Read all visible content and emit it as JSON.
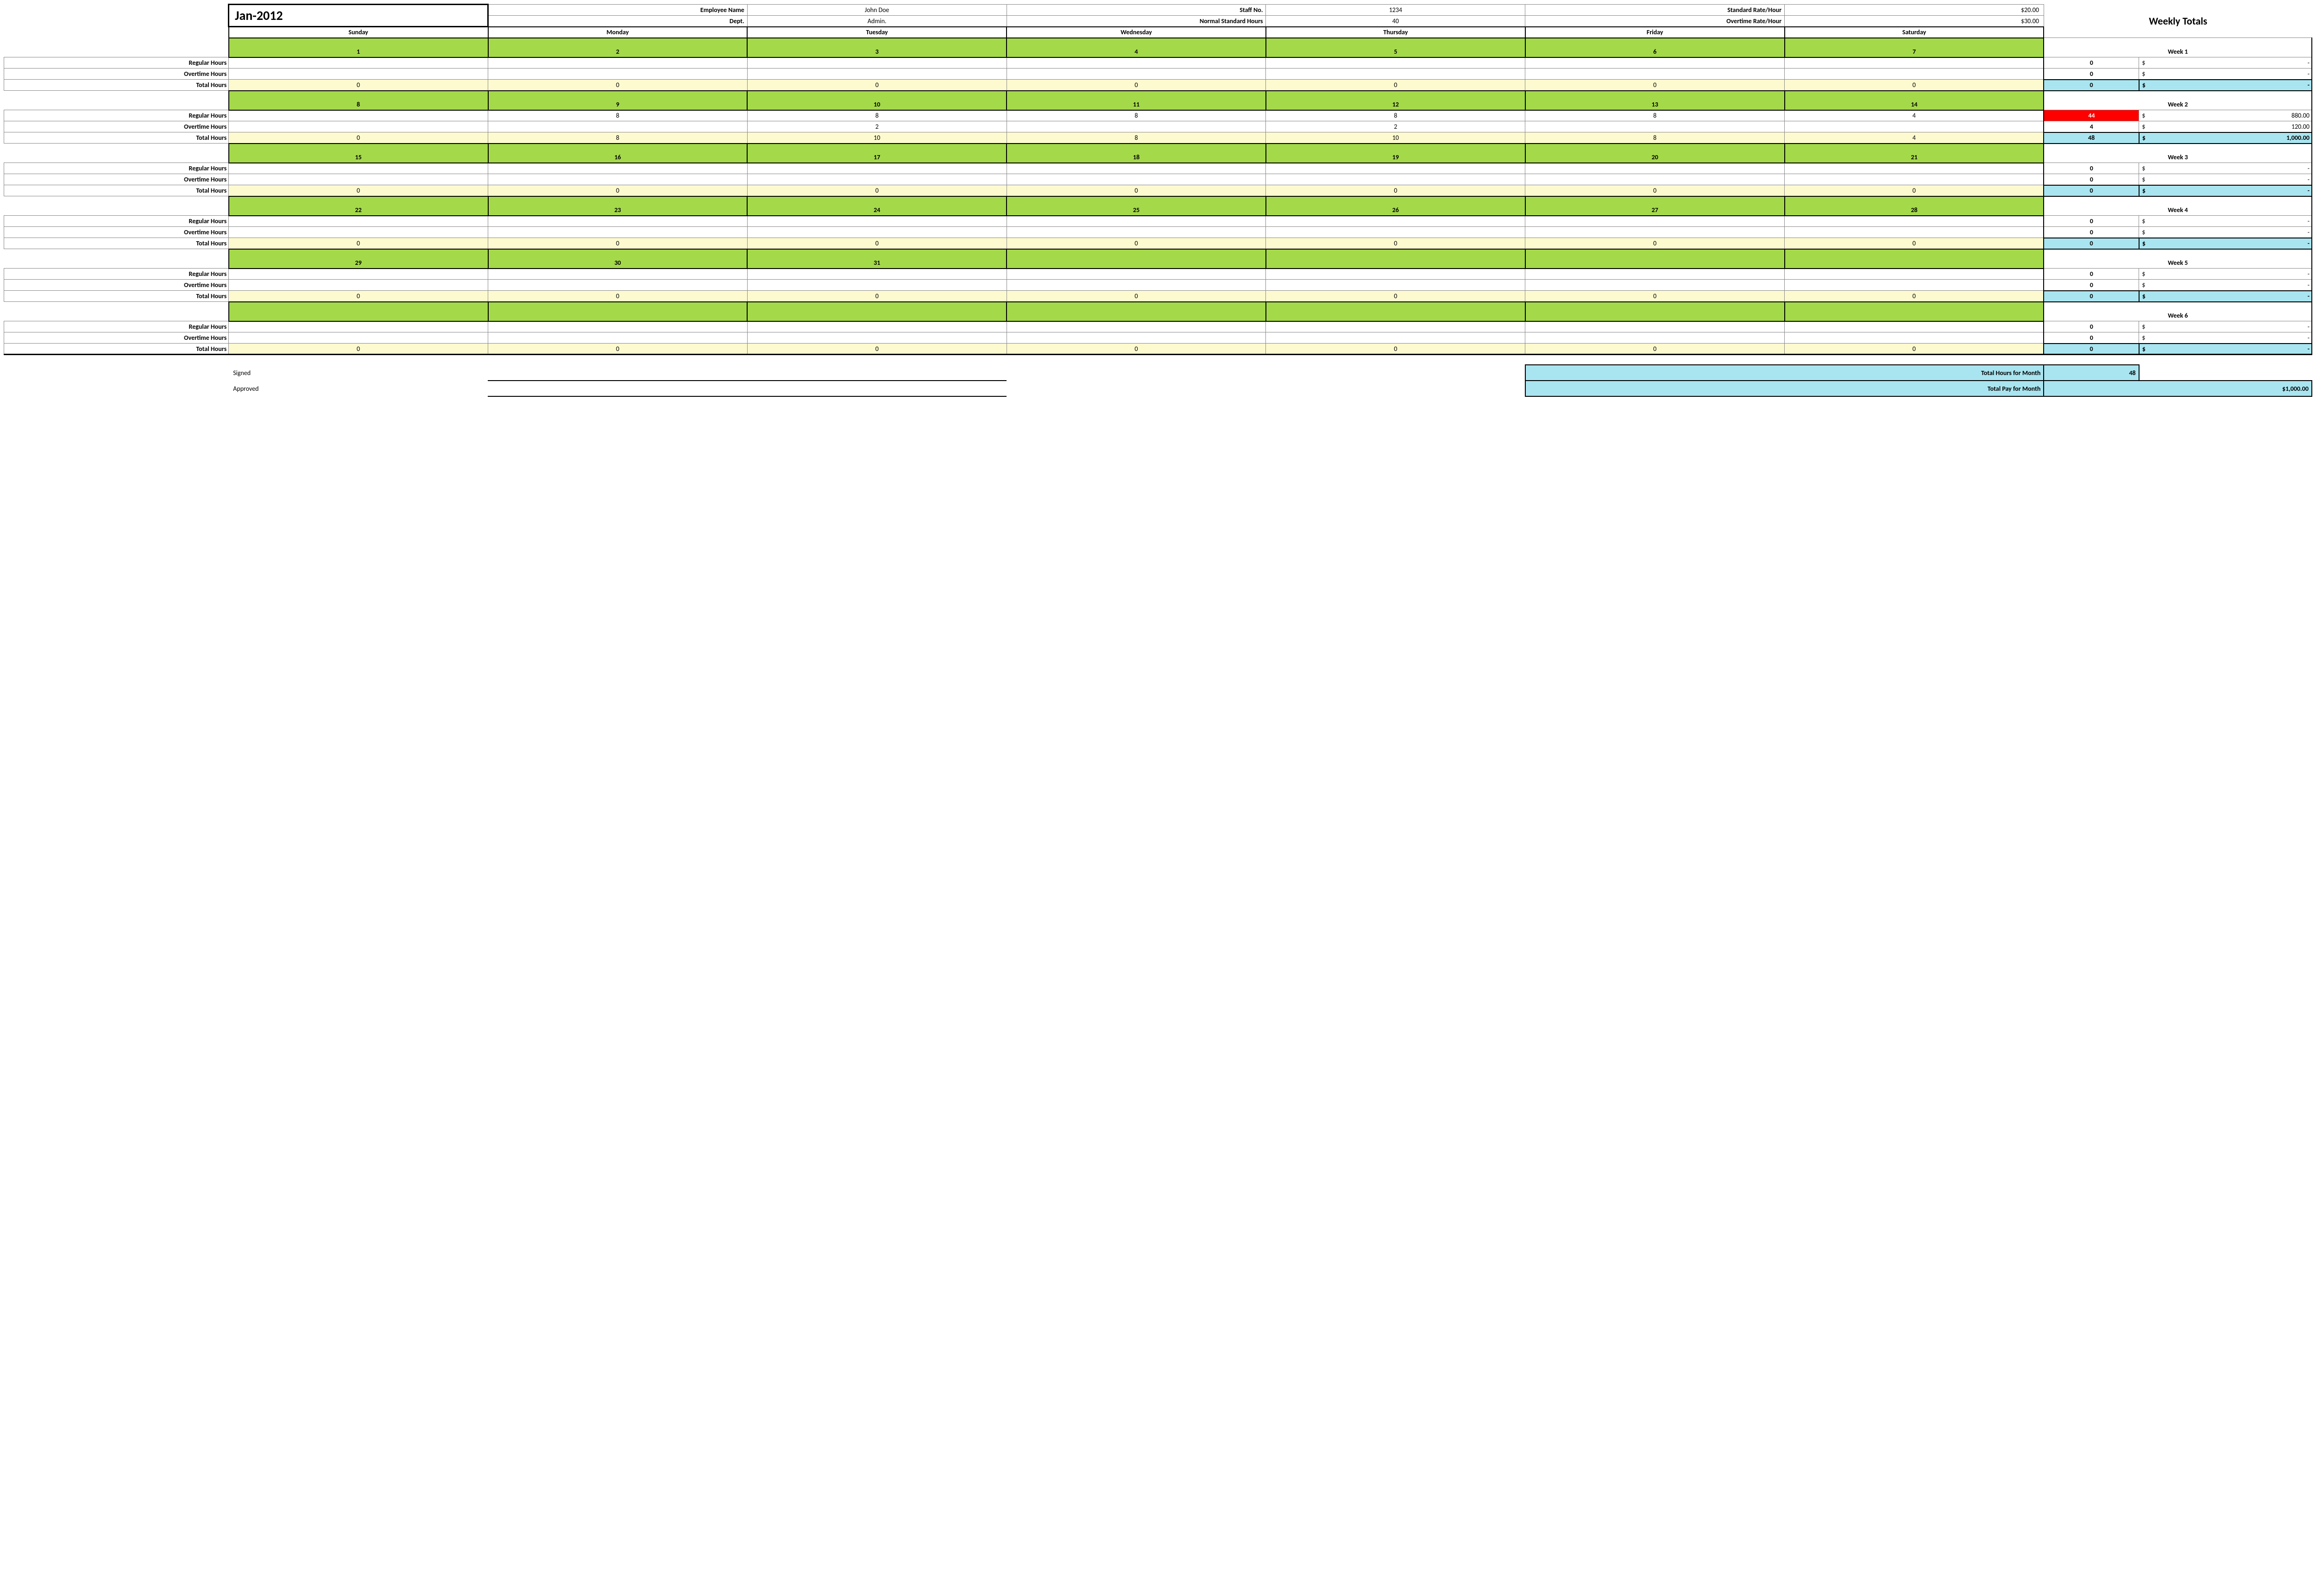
{
  "header": {
    "month_title": "Jan-2012",
    "emp_name_lbl": "Employee Name",
    "emp_name": "John Doe",
    "staff_no_lbl": "Staff No.",
    "staff_no": "1234",
    "std_rate_lbl": "Standard Rate/Hour",
    "std_rate": "$20.00",
    "dept_lbl": "Dept.",
    "dept": "Admin.",
    "norm_hrs_lbl": "Normal Standard Hours",
    "norm_hrs": "40",
    "ot_rate_lbl": "Overtime Rate/Hour",
    "ot_rate": "$30.00",
    "weekly_totals_lbl": "Weekly Totals",
    "days": [
      "Sunday",
      "Monday",
      "Tuesday",
      "Wednesday",
      "Thursday",
      "Friday",
      "Saturday"
    ]
  },
  "labels": {
    "regular": "Regular Hours",
    "overtime": "Overtime Hours",
    "total": "Total Hours"
  },
  "weeks": [
    {
      "label": "Week 1",
      "dates": [
        "1",
        "2",
        "3",
        "4",
        "5",
        "6",
        "7"
      ],
      "regular": [
        "",
        "",
        "",
        "",
        "",
        "",
        ""
      ],
      "overtime": [
        "",
        "",
        "",
        "",
        "",
        "",
        ""
      ],
      "total": [
        "0",
        "0",
        "0",
        "0",
        "0",
        "0",
        "0"
      ],
      "wk_reg_hrs": "0",
      "wk_reg_pay": "-",
      "reg_red": false,
      "wk_ot_hrs": "0",
      "wk_ot_pay": "-",
      "wk_tot_hrs": "0",
      "wk_tot_pay": "-"
    },
    {
      "label": "Week 2",
      "dates": [
        "8",
        "9",
        "10",
        "11",
        "12",
        "13",
        "14"
      ],
      "regular": [
        "",
        "8",
        "8",
        "8",
        "8",
        "8",
        "4"
      ],
      "overtime": [
        "",
        "",
        "2",
        "",
        "2",
        "",
        ""
      ],
      "total": [
        "0",
        "8",
        "10",
        "8",
        "10",
        "8",
        "4"
      ],
      "wk_reg_hrs": "44",
      "wk_reg_pay": "880.00",
      "reg_red": true,
      "wk_ot_hrs": "4",
      "wk_ot_pay": "120.00",
      "wk_tot_hrs": "48",
      "wk_tot_pay": "1,000.00"
    },
    {
      "label": "Week 3",
      "dates": [
        "15",
        "16",
        "17",
        "18",
        "19",
        "20",
        "21"
      ],
      "regular": [
        "",
        "",
        "",
        "",
        "",
        "",
        ""
      ],
      "overtime": [
        "",
        "",
        "",
        "",
        "",
        "",
        ""
      ],
      "total": [
        "0",
        "0",
        "0",
        "0",
        "0",
        "0",
        "0"
      ],
      "wk_reg_hrs": "0",
      "wk_reg_pay": "-",
      "reg_red": false,
      "wk_ot_hrs": "0",
      "wk_ot_pay": "-",
      "wk_tot_hrs": "0",
      "wk_tot_pay": "-"
    },
    {
      "label": "Week 4",
      "dates": [
        "22",
        "23",
        "24",
        "25",
        "26",
        "27",
        "28"
      ],
      "regular": [
        "",
        "",
        "",
        "",
        "",
        "",
        ""
      ],
      "overtime": [
        "",
        "",
        "",
        "",
        "",
        "",
        ""
      ],
      "total": [
        "0",
        "0",
        "0",
        "0",
        "0",
        "0",
        "0"
      ],
      "wk_reg_hrs": "0",
      "wk_reg_pay": "-",
      "reg_red": false,
      "wk_ot_hrs": "0",
      "wk_ot_pay": "-",
      "wk_tot_hrs": "0",
      "wk_tot_pay": "-"
    },
    {
      "label": "Week 5",
      "dates": [
        "29",
        "30",
        "31",
        "",
        "",
        "",
        ""
      ],
      "regular": [
        "",
        "",
        "",
        "",
        "",
        "",
        ""
      ],
      "overtime": [
        "",
        "",
        "",
        "",
        "",
        "",
        ""
      ],
      "total": [
        "0",
        "0",
        "0",
        "0",
        "0",
        "0",
        "0"
      ],
      "wk_reg_hrs": "0",
      "wk_reg_pay": "-",
      "reg_red": false,
      "wk_ot_hrs": "0",
      "wk_ot_pay": "-",
      "wk_tot_hrs": "0",
      "wk_tot_pay": "-"
    },
    {
      "label": "Week 6",
      "dates": [
        "",
        "",
        "",
        "",
        "",
        "",
        ""
      ],
      "regular": [
        "",
        "",
        "",
        "",
        "",
        "",
        ""
      ],
      "overtime": [
        "",
        "",
        "",
        "",
        "",
        "",
        ""
      ],
      "total": [
        "0",
        "0",
        "0",
        "0",
        "0",
        "0",
        "0"
      ],
      "wk_reg_hrs": "0",
      "wk_reg_pay": "-",
      "reg_red": false,
      "wk_ot_hrs": "0",
      "wk_ot_pay": "-",
      "wk_tot_hrs": "0",
      "wk_tot_pay": "-"
    }
  ],
  "footer": {
    "signed_lbl": "Signed",
    "approved_lbl": "Approved",
    "total_hrs_lbl": "Total Hours for Month",
    "total_hrs": "48",
    "total_pay_lbl": "Total Pay for Month",
    "total_pay": "$1,000.00"
  },
  "colors": {
    "date_bg": "#a4d94a",
    "total_bg": "#fdfacf",
    "wk_total_bg": "#a9e5f0",
    "alert_bg": "#f00"
  }
}
